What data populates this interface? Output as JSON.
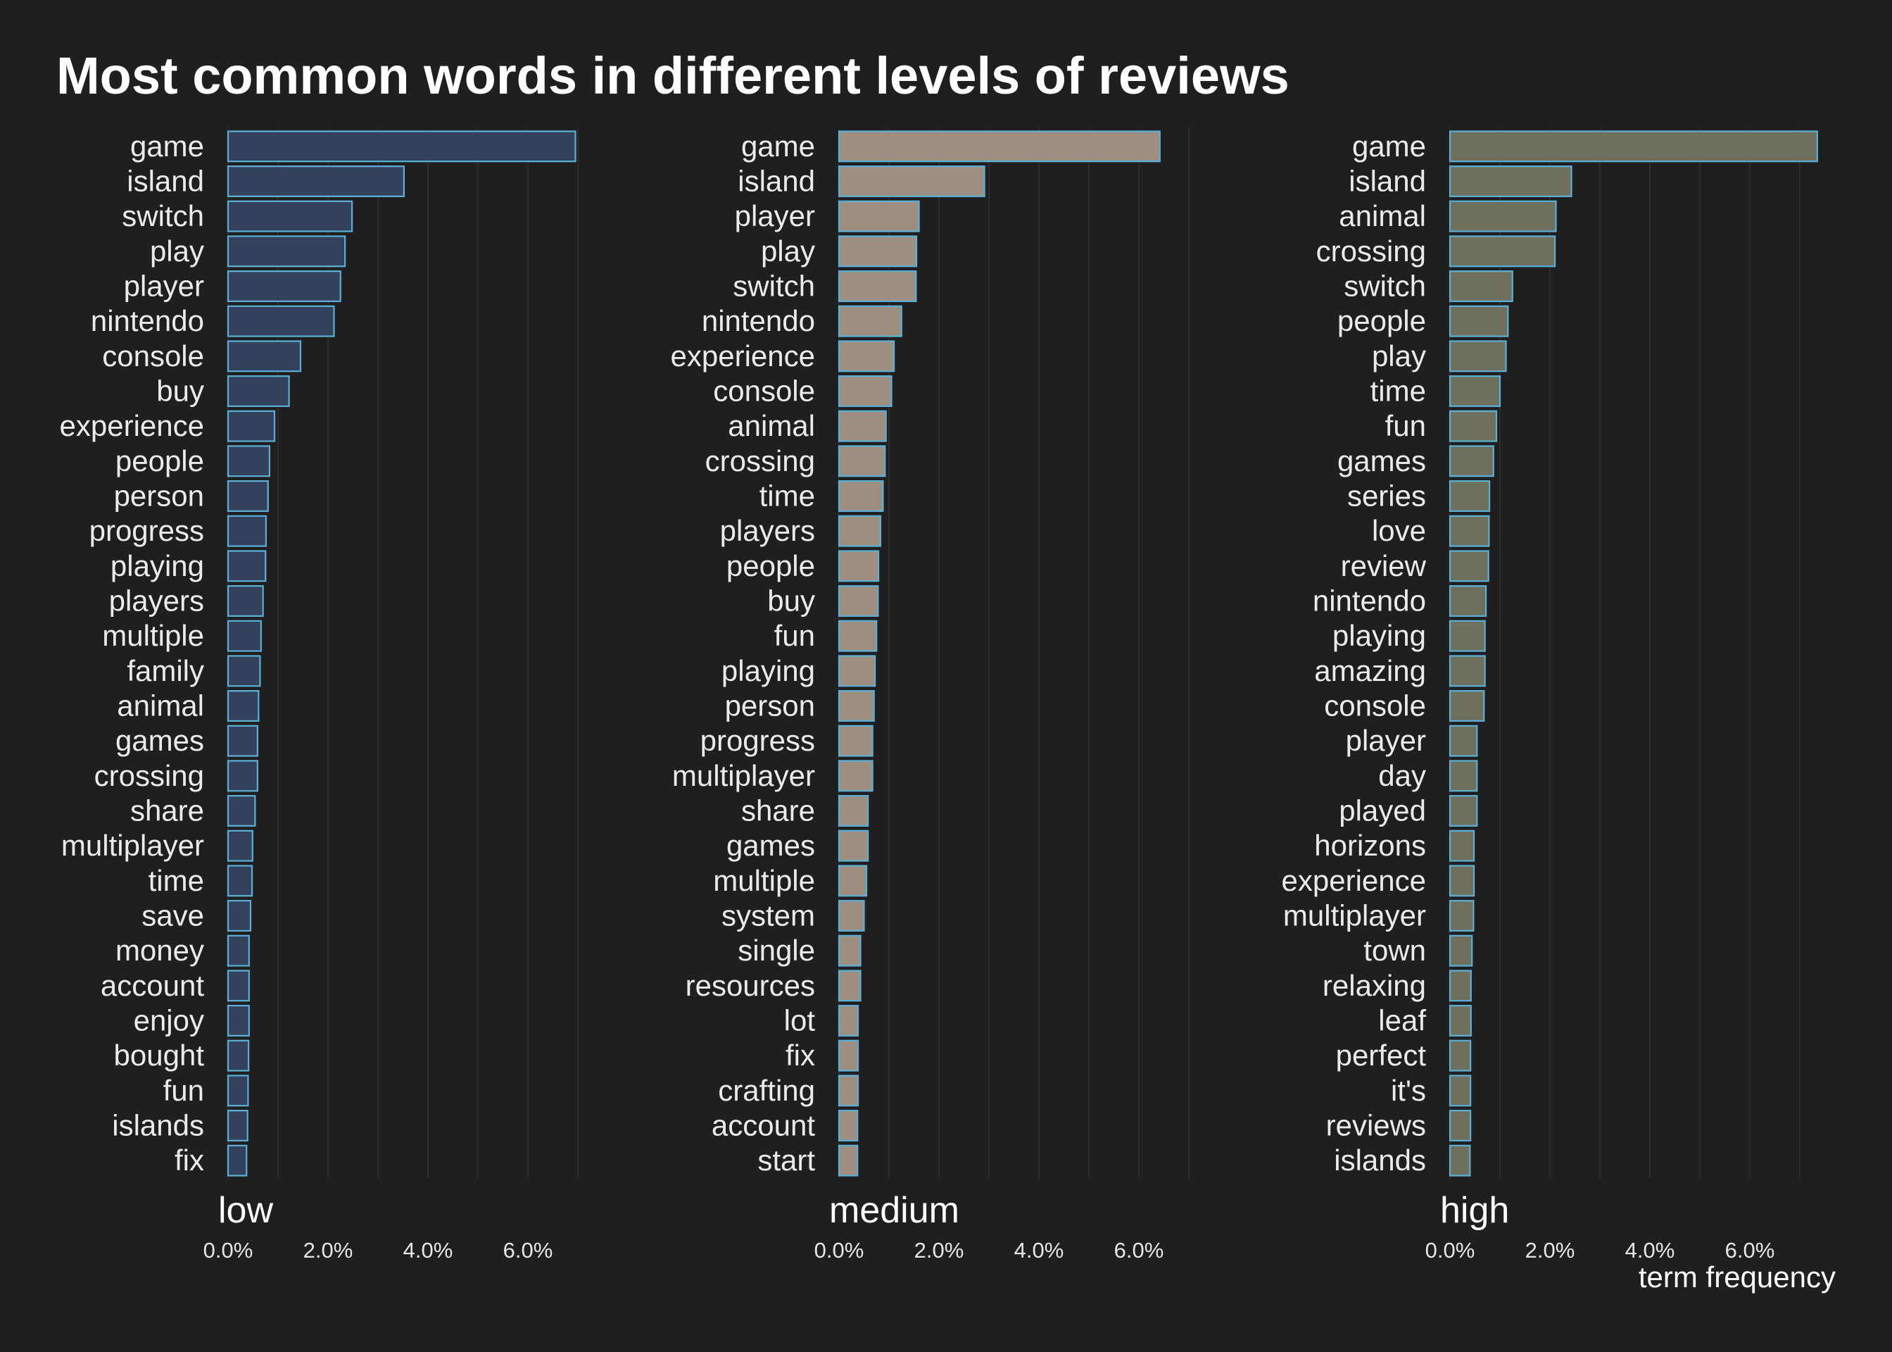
{
  "chart_data": {
    "type": "bar",
    "orientation": "horizontal",
    "title": "Most common words in different levels of reviews",
    "xlabel": "term frequency",
    "xticks": [
      "0.0%",
      "2.0%",
      "4.0%",
      "6.0%"
    ],
    "xlim": [
      0,
      7.4
    ],
    "grid": true,
    "panels": [
      {
        "name": "low",
        "color": "#34415d",
        "words": [
          "game",
          "island",
          "switch",
          "play",
          "player",
          "nintendo",
          "console",
          "buy",
          "experience",
          "people",
          "person",
          "progress",
          "playing",
          "players",
          "multiple",
          "family",
          "animal",
          "games",
          "crossing",
          "share",
          "multiplayer",
          "time",
          "save",
          "money",
          "account",
          "enjoy",
          "bought",
          "fun",
          "islands",
          "fix"
        ],
        "values": [
          6.95,
          3.52,
          2.48,
          2.34,
          2.25,
          2.12,
          1.45,
          1.22,
          0.93,
          0.83,
          0.8,
          0.76,
          0.75,
          0.7,
          0.66,
          0.64,
          0.61,
          0.59,
          0.59,
          0.54,
          0.49,
          0.48,
          0.45,
          0.42,
          0.42,
          0.42,
          0.41,
          0.4,
          0.39,
          0.37
        ]
      },
      {
        "name": "medium",
        "color": "#9d8e7f",
        "words": [
          "game",
          "island",
          "player",
          "play",
          "switch",
          "nintendo",
          "experience",
          "console",
          "animal",
          "crossing",
          "time",
          "players",
          "people",
          "buy",
          "fun",
          "playing",
          "person",
          "progress",
          "multiplayer",
          "share",
          "games",
          "multiple",
          "system",
          "single",
          "resources",
          "lot",
          "fix",
          "crafting",
          "account",
          "start"
        ],
        "values": [
          6.42,
          2.91,
          1.6,
          1.55,
          1.54,
          1.25,
          1.1,
          1.05,
          0.94,
          0.92,
          0.88,
          0.83,
          0.79,
          0.78,
          0.75,
          0.72,
          0.7,
          0.67,
          0.67,
          0.58,
          0.58,
          0.55,
          0.5,
          0.43,
          0.43,
          0.38,
          0.38,
          0.38,
          0.37,
          0.37
        ]
      },
      {
        "name": "high",
        "color": "#6e705d",
        "words": [
          "game",
          "island",
          "animal",
          "crossing",
          "switch",
          "people",
          "play",
          "time",
          "fun",
          "games",
          "series",
          "love",
          "review",
          "nintendo",
          "playing",
          "amazing",
          "console",
          "player",
          "day",
          "played",
          "horizons",
          "experience",
          "multiplayer",
          "town",
          "relaxing",
          "leaf",
          "perfect",
          "it's",
          "reviews",
          "islands"
        ],
        "values": [
          7.35,
          2.43,
          2.12,
          2.1,
          1.25,
          1.16,
          1.12,
          1.0,
          0.93,
          0.87,
          0.79,
          0.78,
          0.77,
          0.72,
          0.7,
          0.7,
          0.68,
          0.54,
          0.54,
          0.54,
          0.48,
          0.48,
          0.47,
          0.44,
          0.42,
          0.42,
          0.41,
          0.41,
          0.41,
          0.4
        ]
      }
    ]
  }
}
